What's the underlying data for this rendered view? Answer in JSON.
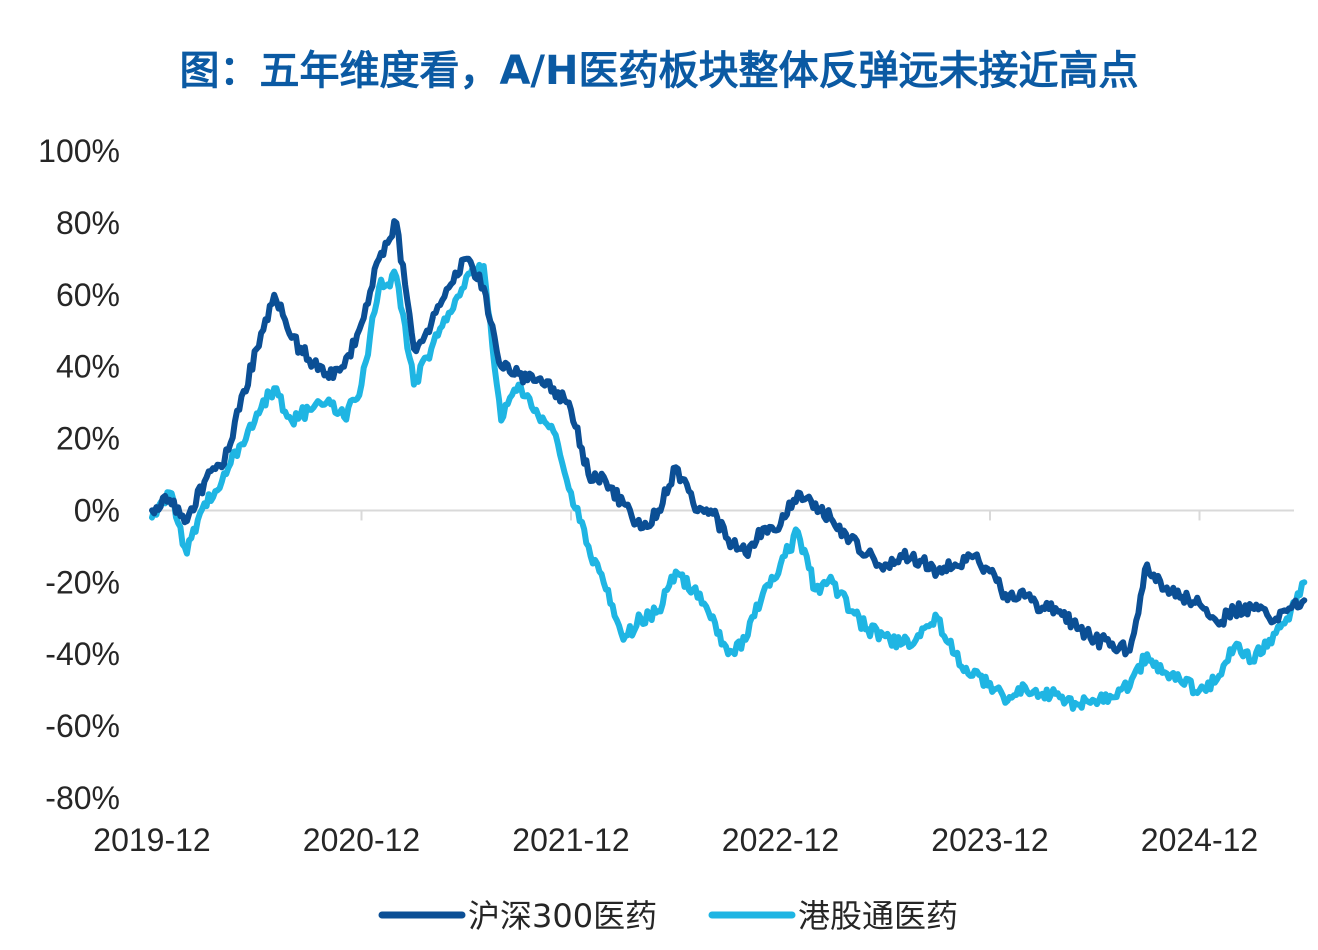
{
  "title": "图：五年维度看，A/H医药板块整体反弹远未接近高点",
  "chart_data": {
    "type": "line",
    "title": "图：五年维度看，A/H医药板块整体反弹远未接近高点",
    "xlabel": "",
    "ylabel": "",
    "x_range": [
      "2019-12",
      "2025-06"
    ],
    "ylim": [
      -80,
      100
    ],
    "x_ticks": [
      "2019-12",
      "2020-12",
      "2021-12",
      "2022-12",
      "2023-12",
      "2024-12"
    ],
    "y_ticks": [
      100,
      80,
      60,
      40,
      20,
      0,
      -20,
      -40,
      -60,
      -80
    ],
    "y_tick_labels": [
      "100%",
      "80%",
      "60%",
      "40%",
      "20%",
      "0%",
      "-20%",
      "-40%",
      "-60%",
      "-80%"
    ],
    "grid": false,
    "legend_position": "bottom",
    "series": [
      {
        "name": "沪深300医药",
        "color": "#0b4f95",
        "points": [
          [
            "2019-12",
            0
          ],
          [
            "2020-01",
            3
          ],
          [
            "2020-02",
            -3
          ],
          [
            "2020-03",
            8
          ],
          [
            "2020-04",
            12
          ],
          [
            "2020-05",
            28
          ],
          [
            "2020-06",
            45
          ],
          [
            "2020-07",
            60
          ],
          [
            "2020-08",
            48
          ],
          [
            "2020-09",
            42
          ],
          [
            "2020-10",
            38
          ],
          [
            "2020-11",
            40
          ],
          [
            "2020-12",
            52
          ],
          [
            "2021-01",
            70
          ],
          [
            "2021-02",
            80
          ],
          [
            "2021-03",
            45
          ],
          [
            "2021-04",
            52
          ],
          [
            "2021-05",
            62
          ],
          [
            "2021-06",
            70
          ],
          [
            "2021-07",
            62
          ],
          [
            "2021-08",
            40
          ],
          [
            "2021-09",
            38
          ],
          [
            "2021-10",
            36
          ],
          [
            "2021-11",
            34
          ],
          [
            "2021-12",
            28
          ],
          [
            "2022-01",
            10
          ],
          [
            "2022-02",
            8
          ],
          [
            "2022-03",
            2
          ],
          [
            "2022-04",
            -5
          ],
          [
            "2022-05",
            0
          ],
          [
            "2022-06",
            12
          ],
          [
            "2022-07",
            2
          ],
          [
            "2022-08",
            0
          ],
          [
            "2022-09",
            -8
          ],
          [
            "2022-10",
            -12
          ],
          [
            "2022-11",
            -5
          ],
          [
            "2022-12",
            -4
          ],
          [
            "2023-01",
            5
          ],
          [
            "2023-02",
            2
          ],
          [
            "2023-03",
            -3
          ],
          [
            "2023-04",
            -8
          ],
          [
            "2023-05",
            -12
          ],
          [
            "2023-06",
            -15
          ],
          [
            "2023-07",
            -13
          ],
          [
            "2023-08",
            -14
          ],
          [
            "2023-09",
            -17
          ],
          [
            "2023-10",
            -15
          ],
          [
            "2023-11",
            -13
          ],
          [
            "2023-12",
            -17
          ],
          [
            "2024-01",
            -25
          ],
          [
            "2024-02",
            -24
          ],
          [
            "2024-03",
            -27
          ],
          [
            "2024-04",
            -28
          ],
          [
            "2024-05",
            -33
          ],
          [
            "2024-06",
            -36
          ],
          [
            "2024-07",
            -37
          ],
          [
            "2024-08",
            -39
          ],
          [
            "2024-09",
            -15
          ],
          [
            "2024-10",
            -22
          ],
          [
            "2024-11",
            -24
          ],
          [
            "2024-12",
            -26
          ],
          [
            "2025-01",
            -31
          ],
          [
            "2025-02",
            -28
          ],
          [
            "2025-03",
            -27
          ],
          [
            "2025-04",
            -30
          ],
          [
            "2025-05",
            -28
          ],
          [
            "2025-06",
            -25
          ]
        ]
      },
      {
        "name": "港股通医药",
        "color": "#1fb5e3",
        "points": [
          [
            "2019-12",
            -2
          ],
          [
            "2020-01",
            5
          ],
          [
            "2020-02",
            -12
          ],
          [
            "2020-03",
            2
          ],
          [
            "2020-04",
            8
          ],
          [
            "2020-05",
            18
          ],
          [
            "2020-06",
            27
          ],
          [
            "2020-07",
            34
          ],
          [
            "2020-08",
            25
          ],
          [
            "2020-09",
            28
          ],
          [
            "2020-10",
            30
          ],
          [
            "2020-11",
            26
          ],
          [
            "2020-12",
            35
          ],
          [
            "2021-01",
            62
          ],
          [
            "2021-02",
            65
          ],
          [
            "2021-03",
            35
          ],
          [
            "2021-04",
            45
          ],
          [
            "2021-05",
            55
          ],
          [
            "2021-06",
            65
          ],
          [
            "2021-07",
            68
          ],
          [
            "2021-08",
            25
          ],
          [
            "2021-09",
            35
          ],
          [
            "2021-10",
            28
          ],
          [
            "2021-11",
            22
          ],
          [
            "2021-12",
            5
          ],
          [
            "2022-01",
            -10
          ],
          [
            "2022-02",
            -22
          ],
          [
            "2022-03",
            -36
          ],
          [
            "2022-04",
            -30
          ],
          [
            "2022-05",
            -28
          ],
          [
            "2022-06",
            -17
          ],
          [
            "2022-07",
            -22
          ],
          [
            "2022-08",
            -30
          ],
          [
            "2022-09",
            -40
          ],
          [
            "2022-10",
            -36
          ],
          [
            "2022-11",
            -23
          ],
          [
            "2022-12",
            -15
          ],
          [
            "2023-01",
            -6
          ],
          [
            "2023-02",
            -22
          ],
          [
            "2023-03",
            -20
          ],
          [
            "2023-04",
            -28
          ],
          [
            "2023-05",
            -33
          ],
          [
            "2023-06",
            -35
          ],
          [
            "2023-07",
            -37
          ],
          [
            "2023-08",
            -35
          ],
          [
            "2023-09",
            -30
          ],
          [
            "2023-10",
            -40
          ],
          [
            "2023-11",
            -46
          ],
          [
            "2023-12",
            -48
          ],
          [
            "2024-01",
            -53
          ],
          [
            "2024-02",
            -49
          ],
          [
            "2024-03",
            -51
          ],
          [
            "2024-04",
            -52
          ],
          [
            "2024-05",
            -54
          ],
          [
            "2024-06",
            -53
          ],
          [
            "2024-07",
            -52
          ],
          [
            "2024-08",
            -49
          ],
          [
            "2024-09",
            -40
          ],
          [
            "2024-10",
            -45
          ],
          [
            "2024-11",
            -48
          ],
          [
            "2024-12",
            -50
          ],
          [
            "2025-01",
            -47
          ],
          [
            "2025-02",
            -38
          ],
          [
            "2025-03",
            -42
          ],
          [
            "2025-04",
            -36
          ],
          [
            "2025-05",
            -30
          ],
          [
            "2025-06",
            -20
          ]
        ]
      }
    ]
  }
}
